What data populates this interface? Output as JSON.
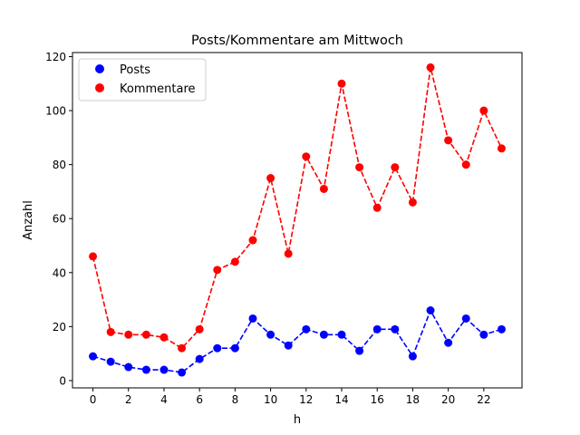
{
  "chart_data": {
    "type": "line",
    "title": "Posts/Kommentare am Mittwoch",
    "xlabel": "h",
    "ylabel": "Anzahl",
    "x": [
      0,
      1,
      2,
      3,
      4,
      5,
      6,
      7,
      8,
      9,
      10,
      11,
      12,
      13,
      14,
      15,
      16,
      17,
      18,
      19,
      20,
      21,
      22,
      23
    ],
    "xticks": [
      0,
      2,
      4,
      6,
      8,
      10,
      12,
      14,
      16,
      18,
      20,
      22
    ],
    "yticks": [
      0,
      20,
      40,
      60,
      80,
      100,
      120
    ],
    "xlim": [
      -1.15,
      24.15
    ],
    "ylim": [
      -2.7,
      121.5
    ],
    "grid": false,
    "legend_position": "top-left",
    "series": [
      {
        "name": "Posts",
        "color": "#0000ff",
        "values": [
          9,
          7,
          5,
          4,
          4,
          3,
          8,
          12,
          12,
          23,
          17,
          13,
          19,
          17,
          17,
          11,
          19,
          19,
          9,
          26,
          14,
          23,
          17,
          19
        ]
      },
      {
        "name": "Kommentare",
        "color": "#ff0000",
        "values": [
          46,
          18,
          17,
          17,
          16,
          12,
          19,
          41,
          44,
          52,
          75,
          47,
          83,
          71,
          110,
          79,
          64,
          79,
          66,
          116,
          89,
          80,
          100,
          86
        ]
      }
    ]
  }
}
